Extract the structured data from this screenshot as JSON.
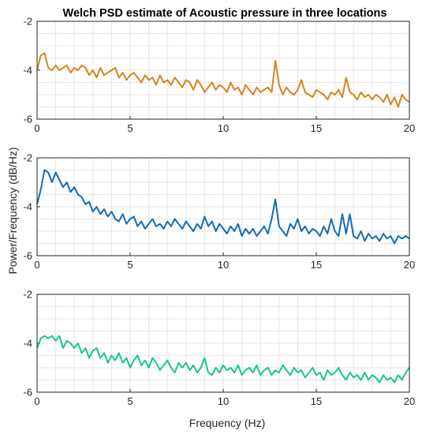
{
  "title": "Welch PSD estimate of Acoustic pressure in three locations",
  "xlabel": "Frequency (Hz)",
  "ylabel": "Power/Frequency (dB/Hz)",
  "chart_data": [
    {
      "type": "line",
      "title": "Welch PSD estimate of Acoustic pressure in three locations",
      "xlabel": "",
      "ylabel": "",
      "xlim": [
        0,
        20
      ],
      "ylim": [
        -6,
        -2
      ],
      "xticks": [
        "0",
        "5",
        "10",
        "15",
        "20"
      ],
      "yticks": [
        "-2",
        "-4",
        "-6"
      ],
      "grid": true,
      "color": "#D9821E",
      "series": [
        {
          "x": [
            0,
            0.2,
            0.4,
            0.6,
            0.8,
            1,
            1.2,
            1.4,
            1.6,
            1.8,
            2,
            2.2,
            2.4,
            2.6,
            2.8,
            3,
            3.2,
            3.4,
            3.6,
            3.8,
            4,
            4.2,
            4.4,
            4.6,
            4.8,
            5,
            5.2,
            5.4,
            5.6,
            5.8,
            6,
            6.2,
            6.4,
            6.6,
            6.8,
            7,
            7.2,
            7.4,
            7.6,
            7.8,
            8,
            8.2,
            8.4,
            8.6,
            8.8,
            9,
            9.2,
            9.4,
            9.6,
            9.8,
            10,
            10.2,
            10.4,
            10.6,
            10.8,
            11,
            11.2,
            11.4,
            11.6,
            11.8,
            12,
            12.2,
            12.4,
            12.6,
            12.8,
            13,
            13.2,
            13.4,
            13.6,
            13.8,
            14,
            14.2,
            14.4,
            14.6,
            14.8,
            15,
            15.2,
            15.4,
            15.6,
            15.8,
            16,
            16.2,
            16.4,
            16.6,
            16.8,
            17,
            17.2,
            17.4,
            17.6,
            17.8,
            18,
            18.2,
            18.4,
            18.6,
            18.8,
            19,
            19.2,
            19.4,
            19.6,
            19.8,
            20
          ],
          "y": [
            -4.0,
            -3.4,
            -3.3,
            -3.9,
            -4.0,
            -3.8,
            -4.0,
            -3.9,
            -3.8,
            -4.1,
            -3.9,
            -4.0,
            -3.8,
            -3.9,
            -4.2,
            -4.0,
            -4.3,
            -3.9,
            -4.2,
            -4.1,
            -4.0,
            -3.9,
            -4.3,
            -4.1,
            -4.4,
            -4.2,
            -4.1,
            -4.3,
            -4.5,
            -4.2,
            -4.4,
            -4.3,
            -4.6,
            -4.2,
            -4.5,
            -4.4,
            -4.6,
            -4.3,
            -4.5,
            -4.7,
            -4.4,
            -4.5,
            -4.8,
            -4.4,
            -4.6,
            -4.9,
            -4.7,
            -4.5,
            -4.8,
            -4.6,
            -4.7,
            -4.9,
            -4.5,
            -4.8,
            -4.7,
            -5.0,
            -4.6,
            -4.8,
            -5.0,
            -4.7,
            -4.9,
            -4.8,
            -4.7,
            -4.9,
            -3.6,
            -4.6,
            -5.0,
            -4.7,
            -4.9,
            -5.0,
            -4.8,
            -4.4,
            -4.9,
            -5.0,
            -5.1,
            -4.8,
            -4.9,
            -5.0,
            -5.2,
            -4.9,
            -5.0,
            -4.8,
            -5.1,
            -4.3,
            -4.9,
            -5.0,
            -5.2,
            -4.9,
            -5.1,
            -5.0,
            -5.2,
            -5.0,
            -5.1,
            -5.3,
            -5.0,
            -5.4,
            -5.1,
            -5.5,
            -5.0,
            -5.2,
            -5.3
          ]
        }
      ]
    },
    {
      "type": "line",
      "xlabel": "",
      "ylabel": "",
      "xlim": [
        0,
        20
      ],
      "ylim": [
        -6,
        -2
      ],
      "xticks": [
        "0",
        "5",
        "10",
        "15",
        "20"
      ],
      "yticks": [
        "-2",
        "-4",
        "-6"
      ],
      "grid": true,
      "color": "#0F6DB8",
      "series": [
        {
          "x": [
            0,
            0.2,
            0.4,
            0.6,
            0.8,
            1,
            1.2,
            1.4,
            1.6,
            1.8,
            2,
            2.2,
            2.4,
            2.6,
            2.8,
            3,
            3.2,
            3.4,
            3.6,
            3.8,
            4,
            4.2,
            4.4,
            4.6,
            4.8,
            5,
            5.2,
            5.4,
            5.6,
            5.8,
            6,
            6.2,
            6.4,
            6.6,
            6.8,
            7,
            7.2,
            7.4,
            7.6,
            7.8,
            8,
            8.2,
            8.4,
            8.6,
            8.8,
            9,
            9.2,
            9.4,
            9.6,
            9.8,
            10,
            10.2,
            10.4,
            10.6,
            10.8,
            11,
            11.2,
            11.4,
            11.6,
            11.8,
            12,
            12.2,
            12.4,
            12.6,
            12.8,
            13,
            13.2,
            13.4,
            13.6,
            13.8,
            14,
            14.2,
            14.4,
            14.6,
            14.8,
            15,
            15.2,
            15.4,
            15.6,
            15.8,
            16,
            16.2,
            16.4,
            16.6,
            16.8,
            17,
            17.2,
            17.4,
            17.6,
            17.8,
            18,
            18.2,
            18.4,
            18.6,
            18.8,
            19,
            19.2,
            19.4,
            19.6,
            19.8,
            20
          ],
          "y": [
            -3.9,
            -3.3,
            -2.5,
            -2.6,
            -3.0,
            -2.6,
            -2.9,
            -3.2,
            -3.0,
            -3.4,
            -3.2,
            -3.5,
            -3.6,
            -3.9,
            -3.8,
            -4.2,
            -4.0,
            -4.3,
            -4.1,
            -4.4,
            -4.2,
            -4.5,
            -4.6,
            -4.3,
            -4.7,
            -4.5,
            -4.4,
            -4.8,
            -4.6,
            -4.9,
            -4.7,
            -4.5,
            -4.8,
            -4.7,
            -4.9,
            -4.6,
            -4.8,
            -4.5,
            -4.7,
            -4.9,
            -4.6,
            -4.8,
            -5.0,
            -4.7,
            -4.9,
            -4.4,
            -4.8,
            -4.6,
            -5.0,
            -4.7,
            -4.9,
            -5.1,
            -4.8,
            -5.0,
            -4.7,
            -5.2,
            -4.9,
            -5.1,
            -4.9,
            -5.2,
            -5.0,
            -4.8,
            -5.1,
            -4.5,
            -3.7,
            -4.8,
            -5.0,
            -5.2,
            -4.7,
            -4.9,
            -4.5,
            -5.0,
            -4.8,
            -5.1,
            -4.9,
            -5.0,
            -5.2,
            -4.8,
            -5.1,
            -4.5,
            -5.0,
            -5.2,
            -4.3,
            -5.1,
            -4.3,
            -5.2,
            -5.3,
            -5.0,
            -5.4,
            -5.1,
            -5.3,
            -5.2,
            -5.4,
            -5.1,
            -5.3,
            -5.2,
            -5.5,
            -5.2,
            -5.3,
            -5.2,
            -5.3
          ]
        }
      ]
    },
    {
      "type": "line",
      "xlabel": "Frequency (Hz)",
      "ylabel": "",
      "xlim": [
        0,
        20
      ],
      "ylim": [
        -6,
        -2
      ],
      "xticks": [
        "0",
        "5",
        "10",
        "15",
        "20"
      ],
      "yticks": [
        "-2",
        "-4",
        "-6"
      ],
      "grid": true,
      "color": "#17C68A",
      "series": [
        {
          "x": [
            0,
            0.2,
            0.4,
            0.6,
            0.8,
            1,
            1.2,
            1.4,
            1.6,
            1.8,
            2,
            2.2,
            2.4,
            2.6,
            2.8,
            3,
            3.2,
            3.4,
            3.6,
            3.8,
            4,
            4.2,
            4.4,
            4.6,
            4.8,
            5,
            5.2,
            5.4,
            5.6,
            5.8,
            6,
            6.2,
            6.4,
            6.6,
            6.8,
            7,
            7.2,
            7.4,
            7.6,
            7.8,
            8,
            8.2,
            8.4,
            8.6,
            8.8,
            9,
            9.2,
            9.4,
            9.6,
            9.8,
            10,
            10.2,
            10.4,
            10.6,
            10.8,
            11,
            11.2,
            11.4,
            11.6,
            11.8,
            12,
            12.2,
            12.4,
            12.6,
            12.8,
            13,
            13.2,
            13.4,
            13.6,
            13.8,
            14,
            14.2,
            14.4,
            14.6,
            14.8,
            15,
            15.2,
            15.4,
            15.6,
            15.8,
            16,
            16.2,
            16.4,
            16.6,
            16.8,
            17,
            17.2,
            17.4,
            17.6,
            17.8,
            18,
            18.2,
            18.4,
            18.6,
            18.8,
            19,
            19.2,
            19.4,
            19.6,
            19.8,
            20
          ],
          "y": [
            -4.2,
            -3.8,
            -3.7,
            -3.8,
            -3.7,
            -3.9,
            -3.7,
            -4.2,
            -3.9,
            -4.0,
            -4.2,
            -4.0,
            -4.4,
            -4.2,
            -4.6,
            -4.3,
            -4.2,
            -4.6,
            -4.4,
            -4.8,
            -4.5,
            -4.7,
            -4.4,
            -4.8,
            -4.6,
            -5.0,
            -4.7,
            -4.5,
            -4.9,
            -4.7,
            -5.0,
            -4.6,
            -4.8,
            -5.1,
            -4.9,
            -4.7,
            -5.0,
            -5.2,
            -4.8,
            -5.0,
            -4.8,
            -5.1,
            -4.9,
            -5.2,
            -5.0,
            -4.6,
            -5.2,
            -5.3,
            -5.0,
            -5.2,
            -4.9,
            -5.1,
            -5.0,
            -5.2,
            -4.9,
            -5.3,
            -5.1,
            -5.0,
            -5.2,
            -4.9,
            -5.3,
            -5.1,
            -5.0,
            -5.3,
            -5.1,
            -5.2,
            -4.9,
            -5.1,
            -5.3,
            -5.0,
            -5.2,
            -5.1,
            -5.4,
            -5.2,
            -5.0,
            -5.3,
            -5.2,
            -5.5,
            -5.1,
            -5.3,
            -5.2,
            -5.0,
            -5.3,
            -5.5,
            -5.2,
            -5.4,
            -5.3,
            -5.5,
            -5.2,
            -5.5,
            -5.3,
            -5.4,
            -5.6,
            -5.3,
            -5.5,
            -5.4,
            -5.6,
            -5.3,
            -5.5,
            -5.2,
            -5.0
          ]
        }
      ]
    }
  ]
}
